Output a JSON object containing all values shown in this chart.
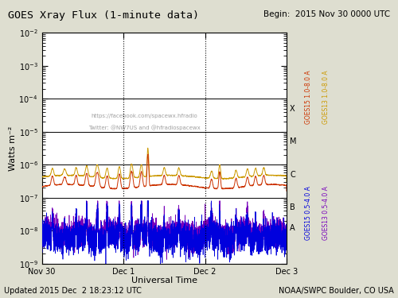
{
  "title": "GOES Xray Flux (1-minute data)",
  "begin_label": "Begin:  2015 Nov 30 0000 UTC",
  "xlabel": "Universal Time",
  "ylabel": "Watts m⁻²",
  "footer_left": "Updated 2015 Dec  2 18:23:12 UTC",
  "footer_right": "NOAA/SWPC Boulder, CO USA",
  "watermark_line1": "https://facebook.com/spacewx.hfradio",
  "watermark_line2": "Twitter: @NW7US and @hfradiospacewx",
  "bg_color": "#deded0",
  "plot_bg_color": "#ffffff",
  "goes15_high_color": "#cc3300",
  "goes13_high_color": "#cc9900",
  "goes15_low_color": "#0000dd",
  "goes13_low_color": "#7700bb",
  "right_label_goes15_high": "GOES15 1.0-8.0 A",
  "right_label_goes13_high": "GOES13 1.0-8.0 A",
  "right_label_goes15_low": "GOES15 0.5-4.0 A",
  "right_label_goes13_low": "GOES13 0.5-4.0 A",
  "dashed_vlines_days": [
    1.0,
    2.0
  ],
  "flare_hlines": [
    0.0001,
    1e-05,
    1e-06,
    1e-07,
    1e-08
  ],
  "xtick_labels": [
    "Nov 30",
    "Dec 1",
    "Dec 2",
    "Dec 3"
  ],
  "seed": 42
}
